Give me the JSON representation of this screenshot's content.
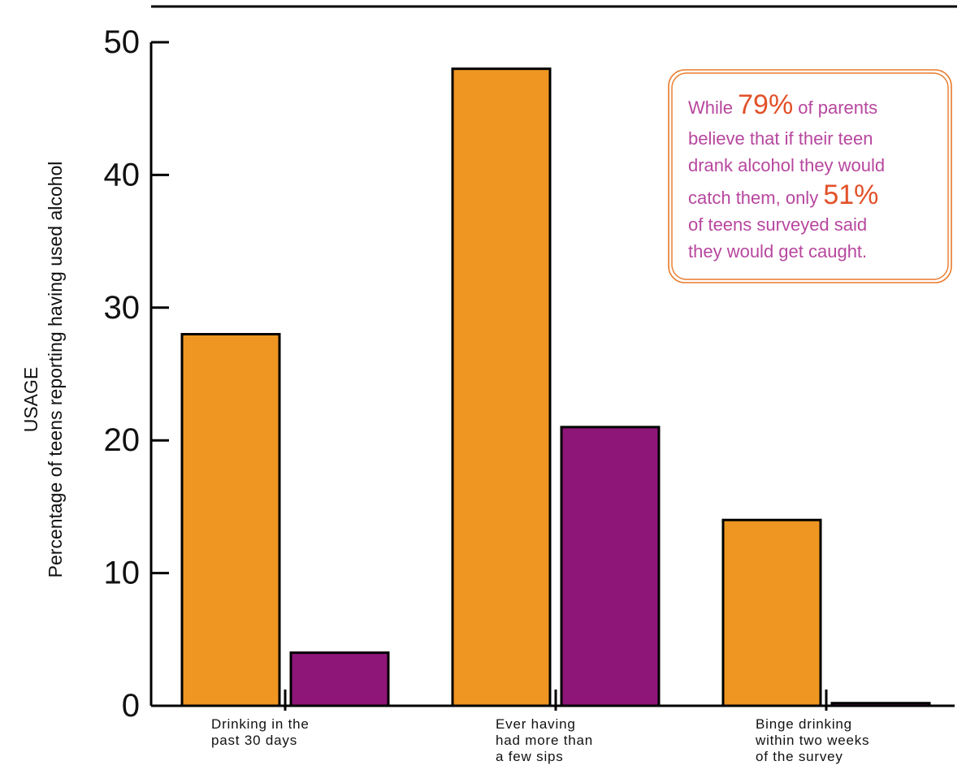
{
  "chart_data": {
    "type": "bar",
    "title": "",
    "ylabel_line1": "USAGE",
    "ylabel_line2": "Percentage of teens reporting having used alcohol",
    "xlabel": "",
    "ylim": [
      0,
      50
    ],
    "yticks": [
      0,
      10,
      20,
      30,
      40,
      50
    ],
    "grid": false,
    "legend": "none",
    "categories": [
      [
        "Drinking in the",
        "past 30 days"
      ],
      [
        "Ever having",
        "had more than",
        "a few sips"
      ],
      [
        "Binge drinking",
        "within two weeks",
        "of the survey"
      ]
    ],
    "series": [
      {
        "values": [
          28,
          48,
          14
        ],
        "color": "#EE9621"
      },
      {
        "values": [
          4,
          21,
          0.2
        ],
        "color": "#8E1679"
      }
    ],
    "annotation": {
      "segments": [
        {
          "text": "While ",
          "highlight": false
        },
        {
          "text": "79%",
          "highlight": true
        },
        {
          "text": " of parents believe that if their teen drank alcohol they would catch them, only ",
          "highlight": false
        },
        {
          "text": "51%",
          "highlight": true
        },
        {
          "text": " of teens surveyed said they would get caught.",
          "highlight": false
        }
      ],
      "lines": [
        [
          {
            "t": "While ",
            "h": false
          },
          {
            "t": "79%",
            "h": true
          },
          {
            "t": " of parents",
            "h": false
          }
        ],
        [
          {
            "t": "believe that if their teen",
            "h": false
          }
        ],
        [
          {
            "t": "drank alcohol they would",
            "h": false
          }
        ],
        [
          {
            "t": "catch them, only ",
            "h": false
          },
          {
            "t": "51%",
            "h": true
          }
        ],
        [
          {
            "t": "of teens surveyed said",
            "h": false
          }
        ],
        [
          {
            "t": "they would get caught.",
            "h": false
          }
        ]
      ],
      "text_color": "#B7479E",
      "highlight_color": "#E2512A",
      "border_color": "#E87A2B"
    },
    "colors": {
      "axis": "#000000",
      "bar_outline": "#000000"
    }
  }
}
